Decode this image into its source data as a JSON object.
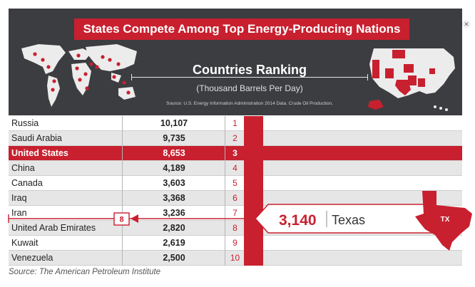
{
  "title": "States Compete Among Top Energy-Producing Nations",
  "subtitle_heading": "Countries Ranking",
  "subtitle_units": "(Thousand Barrels Per Day)",
  "data_source_note": "Source: U.S. Energy Information Administration 2014 Data. Crude Oil Production.",
  "caption": "Source: The American Petroleum Institute",
  "colors": {
    "accent": "#c8202f",
    "header_bg": "#3c3d40",
    "row_alt": "#e6e6e6"
  },
  "icons": {
    "close": "close-icon",
    "world_map": "world-map-icon",
    "us_map": "us-map-icon",
    "texas": "texas-icon"
  },
  "chart_data": {
    "type": "table",
    "rows": [
      {
        "country": "Russia",
        "value": "10,107",
        "rank": "1"
      },
      {
        "country": "Saudi Arabia",
        "value": "9,735",
        "rank": "2"
      },
      {
        "country": "United States",
        "value": "8,653",
        "rank": "3",
        "highlight": true
      },
      {
        "country": "China",
        "value": "4,189",
        "rank": "4"
      },
      {
        "country": "Canada",
        "value": "3,603",
        "rank": "5"
      },
      {
        "country": "Iraq",
        "value": "3,368",
        "rank": "6"
      },
      {
        "country": "Iran",
        "value": "3,236",
        "rank": "7"
      },
      {
        "country": "United Arab Emirates",
        "value": "2,820",
        "rank": "8"
      },
      {
        "country": "Kuwait",
        "value": "2,619",
        "rank": "9"
      },
      {
        "country": "Venezuela",
        "value": "2,500",
        "rank": "10"
      }
    ],
    "callout": {
      "value": "3,140",
      "state": "Texas",
      "state_abbr": "TX",
      "rank": "8"
    }
  }
}
